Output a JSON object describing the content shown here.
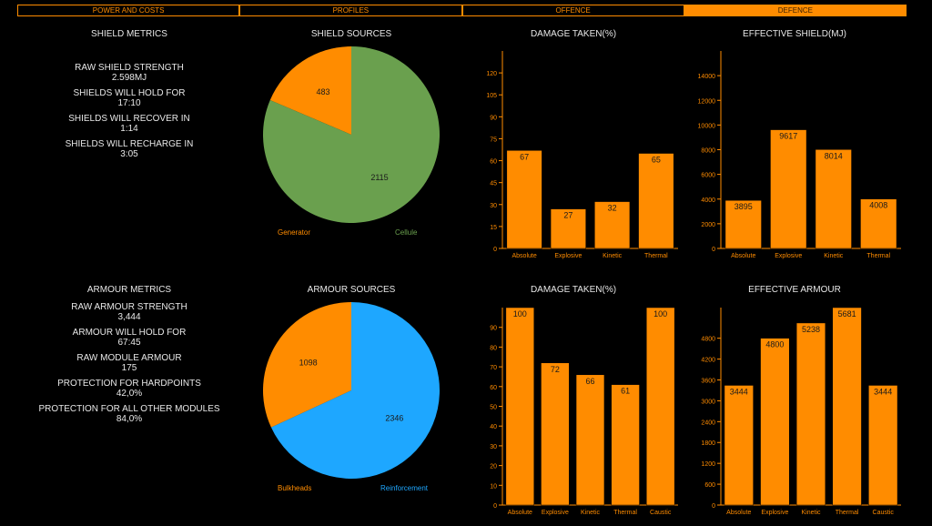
{
  "tabs": [
    "POWER AND COSTS",
    "PROFILES",
    "OFFENCE",
    "DEFENCE"
  ],
  "active_tab": 3,
  "shield": {
    "metrics_title": "SHIELD METRICS",
    "metrics": [
      {
        "label": "RAW SHIELD STRENGTH",
        "value": "2.598MJ"
      },
      {
        "label": "SHIELDS WILL HOLD FOR",
        "value": "17:10"
      },
      {
        "label": "SHIELDS WILL RECOVER IN",
        "value": "1:14"
      },
      {
        "label": "SHIELDS WILL RECHARGE IN",
        "value": "3:05"
      }
    ]
  },
  "armour": {
    "metrics_title": "ARMOUR METRICS",
    "metrics": [
      {
        "label": "RAW ARMOUR STRENGTH",
        "value": "3,444"
      },
      {
        "label": "ARMOUR WILL HOLD FOR",
        "value": "67:45"
      },
      {
        "label": "RAW MODULE ARMOUR",
        "value": "175"
      },
      {
        "label": "PROTECTION FOR HARDPOINTS",
        "value": "42,0%"
      },
      {
        "label": "PROTECTION FOR ALL OTHER MODULES",
        "value": "84,0%"
      }
    ]
  },
  "colors": {
    "accent": "#ff8c00",
    "generator": "#ff8c00",
    "cellule": "#6aa04e",
    "bulkheads": "#ff8c00",
    "reinforcement": "#1ea7ff"
  },
  "chart_data": [
    {
      "id": "shield-sources",
      "type": "pie",
      "title": "SHIELD SOURCES",
      "labels": [
        "Generator",
        "Cellule"
      ],
      "values": [
        483,
        2115
      ],
      "colors": [
        "#ff8c00",
        "#6aa04e"
      ]
    },
    {
      "id": "shield-damage",
      "type": "bar",
      "title": "DAMAGE TAKEN(%)",
      "categories": [
        "Absolute",
        "Explosive",
        "Kinetic",
        "Thermal"
      ],
      "values": [
        67,
        27,
        32,
        65
      ],
      "ylim": [
        0,
        135
      ],
      "yticks": [
        0,
        15,
        30,
        45,
        60,
        75,
        90,
        105,
        120
      ]
    },
    {
      "id": "effective-shield",
      "type": "bar",
      "title": "EFFECTIVE SHIELD(MJ)",
      "categories": [
        "Absolute",
        "Explosive",
        "Kinetic",
        "Thermal"
      ],
      "values": [
        3895,
        9617,
        8014,
        4008
      ],
      "ylim": [
        0,
        16000
      ],
      "yticks": [
        0,
        2000,
        4000,
        6000,
        8000,
        10000,
        12000,
        14000
      ]
    },
    {
      "id": "armour-sources",
      "type": "pie",
      "title": "ARMOUR SOURCES",
      "labels": [
        "Bulkheads",
        "Reinforcement"
      ],
      "values": [
        1098,
        2346
      ],
      "colors": [
        "#ff8c00",
        "#1ea7ff"
      ]
    },
    {
      "id": "armour-damage",
      "type": "bar",
      "title": "DAMAGE TAKEN(%)",
      "categories": [
        "Absolute",
        "Explosive",
        "Kinetic",
        "Thermal",
        "Caustic"
      ],
      "values": [
        100,
        72,
        66,
        61,
        100
      ],
      "ylim": [
        0,
        100
      ],
      "yticks": [
        0,
        10,
        20,
        30,
        40,
        50,
        60,
        70,
        80,
        90
      ]
    },
    {
      "id": "effective-armour",
      "type": "bar",
      "title": "EFFECTIVE ARMOUR",
      "categories": [
        "Absolute",
        "Explosive",
        "Kinetic",
        "Thermal",
        "Caustic"
      ],
      "values": [
        3444,
        4800,
        5238,
        5681,
        3444
      ],
      "ylim": [
        0,
        5681
      ],
      "yticks": [
        0,
        600,
        1200,
        1800,
        2400,
        3000,
        3600,
        4200,
        4800
      ]
    }
  ]
}
